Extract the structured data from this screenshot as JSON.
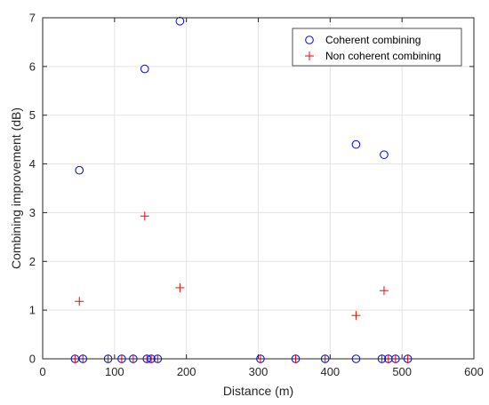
{
  "chart_data": {
    "type": "scatter",
    "xlabel": "Distance (m)",
    "ylabel": "Combining improvement (dB)",
    "xlim": [
      0,
      600
    ],
    "ylim": [
      0,
      7
    ],
    "xticks": [
      "0",
      "100",
      "200",
      "300",
      "400",
      "500",
      "600"
    ],
    "yticks": [
      "0",
      "1",
      "2",
      "3",
      "4",
      "5",
      "6",
      "7"
    ],
    "grid": true,
    "legend_position": "top-right",
    "series": [
      {
        "name": "Coherent combining",
        "marker": "circle",
        "color": "#0000ff",
        "points": [
          {
            "x": 45,
            "y": 0
          },
          {
            "x": 51,
            "y": 3.87
          },
          {
            "x": 56,
            "y": 0
          },
          {
            "x": 91,
            "y": 0
          },
          {
            "x": 110,
            "y": 0
          },
          {
            "x": 126,
            "y": 0
          },
          {
            "x": 142,
            "y": 5.95
          },
          {
            "x": 145,
            "y": 0
          },
          {
            "x": 151,
            "y": 0
          },
          {
            "x": 160,
            "y": 0
          },
          {
            "x": 191,
            "y": 6.93
          },
          {
            "x": 303,
            "y": 0
          },
          {
            "x": 352,
            "y": 0
          },
          {
            "x": 393,
            "y": 0
          },
          {
            "x": 436,
            "y": 4.4
          },
          {
            "x": 436,
            "y": 0
          },
          {
            "x": 472,
            "y": 0
          },
          {
            "x": 475,
            "y": 4.19
          },
          {
            "x": 481,
            "y": 0
          },
          {
            "x": 491,
            "y": 0
          },
          {
            "x": 508,
            "y": 0
          }
        ]
      },
      {
        "name": "Non coherent combining",
        "marker": "plus",
        "color": "#ff0000",
        "points": [
          {
            "x": 45,
            "y": 0
          },
          {
            "x": 51,
            "y": 1.18
          },
          {
            "x": 56,
            "y": 0
          },
          {
            "x": 91,
            "y": 0
          },
          {
            "x": 110,
            "y": 0
          },
          {
            "x": 126,
            "y": 0
          },
          {
            "x": 142,
            "y": 2.93
          },
          {
            "x": 145,
            "y": 0
          },
          {
            "x": 151,
            "y": 0
          },
          {
            "x": 160,
            "y": 0
          },
          {
            "x": 191,
            "y": 1.46
          },
          {
            "x": 303,
            "y": 0
          },
          {
            "x": 352,
            "y": 0
          },
          {
            "x": 393,
            "y": 0
          },
          {
            "x": 436,
            "y": 0.89
          },
          {
            "x": 472,
            "y": 0
          },
          {
            "x": 475,
            "y": 1.4
          },
          {
            "x": 481,
            "y": 0
          },
          {
            "x": 491,
            "y": 0
          },
          {
            "x": 508,
            "y": 0
          }
        ]
      }
    ]
  }
}
